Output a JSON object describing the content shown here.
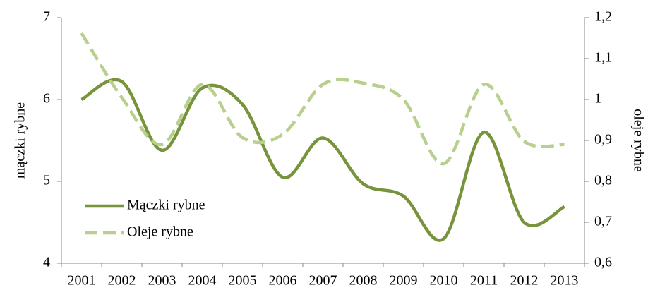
{
  "chart_data": {
    "type": "line",
    "categories": [
      "2001",
      "2002",
      "2003",
      "2004",
      "2005",
      "2006",
      "2007",
      "2008",
      "2009",
      "2010",
      "2011",
      "2012",
      "2013"
    ],
    "series": [
      {
        "name": "Mączki rybne",
        "color": "#77933c",
        "dash": false,
        "values": [
          6.0,
          6.22,
          5.38,
          6.14,
          5.94,
          5.05,
          5.53,
          4.97,
          4.82,
          4.3,
          5.6,
          4.5,
          4.69
        ]
      },
      {
        "name": "Oleje rybne",
        "color": "#b8cf8e",
        "dash": true,
        "axis": "y2",
        "values": [
          1.162,
          1.005,
          0.89,
          1.037,
          0.907,
          0.915,
          1.037,
          1.04,
          1.0,
          0.843,
          1.037,
          0.898,
          0.89
        ]
      }
    ],
    "ylabel": "mączki rybne",
    "y2label": "oleje rybne",
    "ylim": [
      4,
      7
    ],
    "yticks": [
      4,
      5,
      6,
      7
    ],
    "y2lim": [
      0.6,
      1.2
    ],
    "y2ticks": [
      {
        "value": 0.6,
        "label": "0,6"
      },
      {
        "value": 0.7,
        "label": "0,7"
      },
      {
        "value": 0.8,
        "label": "0,8"
      },
      {
        "value": 0.9,
        "label": "0,9"
      },
      1,
      {
        "value": 1.1,
        "label": "1,1"
      },
      {
        "value": 1.2,
        "label": "1,2"
      }
    ],
    "legend": "lower-left"
  }
}
